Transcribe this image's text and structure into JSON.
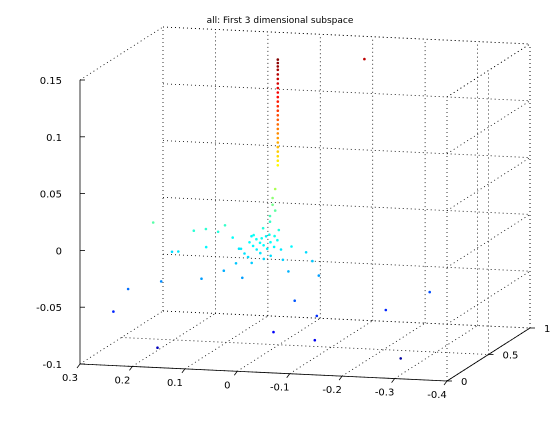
{
  "chart_data": {
    "type": "scatter",
    "title": "all: First 3 dimensional subspace",
    "xlabel": "",
    "ylabel": "",
    "zlabel": "",
    "xlim": [
      -0.4,
      0.3
    ],
    "ylim": [
      0,
      1
    ],
    "zlim": [
      -0.1,
      0.15
    ],
    "x_ticks": [
      "0.3",
      "0.2",
      "0.1",
      "0",
      "-0.1",
      "-0.2",
      "-0.3",
      "-0.4"
    ],
    "y_ticks": [
      "0",
      "0.5",
      "1"
    ],
    "z_ticks": [
      "-0.1",
      "-0.05",
      "0",
      "0.05",
      "0.1",
      "0.15"
    ],
    "grid": true,
    "colormap": "jet",
    "colors": {
      "background": "#ffffff",
      "axes": "#000000",
      "grid": "#000000"
    },
    "points": [
      [
        0.005,
        0.52,
        0.15
      ],
      [
        0.005,
        0.52,
        0.147
      ],
      [
        0.005,
        0.52,
        0.144
      ],
      [
        0.005,
        0.52,
        0.141
      ],
      [
        0.005,
        0.52,
        0.137
      ],
      [
        0.005,
        0.52,
        0.133
      ],
      [
        0.005,
        0.52,
        0.129
      ],
      [
        0.005,
        0.52,
        0.125
      ],
      [
        0.005,
        0.52,
        0.121
      ],
      [
        0.005,
        0.52,
        0.117
      ],
      [
        0.005,
        0.52,
        0.113
      ],
      [
        0.005,
        0.52,
        0.109
      ],
      [
        0.005,
        0.52,
        0.105
      ],
      [
        0.005,
        0.52,
        0.101
      ],
      [
        0.005,
        0.52,
        0.097
      ],
      [
        0.005,
        0.52,
        0.093
      ],
      [
        0.005,
        0.52,
        0.089
      ],
      [
        0.005,
        0.52,
        0.085
      ],
      [
        0.005,
        0.52,
        0.081
      ],
      [
        0.005,
        0.52,
        0.077
      ],
      [
        0.005,
        0.52,
        0.073
      ],
      [
        0.005,
        0.52,
        0.069
      ],
      [
        0.005,
        0.52,
        0.065
      ],
      [
        0.005,
        0.52,
        0.061
      ],
      [
        0.005,
        0.52,
        0.057
      ],
      [
        -0.1,
        0.9,
        0.135
      ],
      [
        0.01,
        0.52,
        0.036
      ],
      [
        0.015,
        0.52,
        0.028
      ],
      [
        0.015,
        0.52,
        0.022
      ],
      [
        0.01,
        0.52,
        0.017
      ],
      [
        0.02,
        0.52,
        0.012
      ],
      [
        0.02,
        0.52,
        0.007
      ],
      [
        0.03,
        0.5,
        0.002
      ],
      [
        0.0,
        0.5,
        0.001
      ],
      [
        0.01,
        0.45,
        -0.001
      ],
      [
        0.0,
        0.45,
        -0.002
      ],
      [
        0.04,
        0.45,
        -0.002
      ],
      [
        0.02,
        0.42,
        -0.003
      ],
      [
        0.03,
        0.42,
        -0.004
      ],
      [
        -0.01,
        0.42,
        -0.004
      ],
      [
        0.0,
        0.4,
        -0.005
      ],
      [
        0.02,
        0.4,
        -0.006
      ],
      [
        0.04,
        0.4,
        -0.006
      ],
      [
        0.01,
        0.38,
        -0.007
      ],
      [
        -0.01,
        0.38,
        -0.008
      ],
      [
        0.03,
        0.38,
        -0.008
      ],
      [
        0.0,
        0.36,
        -0.009
      ],
      [
        0.05,
        0.36,
        -0.01
      ],
      [
        0.02,
        0.36,
        -0.01
      ],
      [
        -0.02,
        0.4,
        -0.011
      ],
      [
        0.01,
        0.34,
        -0.012
      ],
      [
        0.04,
        0.34,
        -0.013
      ],
      [
        -0.01,
        0.34,
        -0.014
      ],
      [
        0.03,
        0.32,
        -0.015
      ],
      [
        0.0,
        0.32,
        -0.016
      ],
      [
        0.06,
        0.4,
        -0.012
      ],
      [
        -0.03,
        0.36,
        -0.018
      ],
      [
        0.02,
        0.3,
        -0.019
      ],
      [
        0.05,
        0.3,
        -0.02
      ],
      [
        -0.04,
        0.4,
        -0.008
      ],
      [
        0.08,
        0.45,
        -0.005
      ],
      [
        0.1,
        0.4,
        0.002
      ],
      [
        0.12,
        0.38,
        0.005
      ],
      [
        0.09,
        0.42,
        0.007
      ],
      [
        0.14,
        0.36,
        0.004
      ],
      [
        0.11,
        0.32,
        -0.008
      ],
      [
        -0.06,
        0.45,
        -0.015
      ],
      [
        -0.08,
        0.4,
        -0.02
      ],
      [
        -0.05,
        0.3,
        -0.025
      ],
      [
        0.07,
        0.28,
        -0.026
      ],
      [
        0.16,
        0.3,
        -0.012
      ],
      [
        0.18,
        0.35,
        -0.015
      ],
      [
        0.03,
        0.25,
        -0.03
      ],
      [
        -0.1,
        0.35,
        -0.03
      ],
      [
        0.2,
        0.25,
        0.015
      ],
      [
        0.06,
        0.55,
        -0.008
      ],
      [
        0.04,
        0.6,
        -0.01
      ],
      [
        0.24,
        0.2,
        -0.042
      ],
      [
        0.18,
        0.22,
        -0.035
      ],
      [
        0.1,
        0.2,
        -0.03
      ],
      [
        -0.07,
        0.25,
        -0.048
      ],
      [
        0.26,
        0.15,
        -0.06
      ],
      [
        -0.12,
        0.2,
        -0.058
      ],
      [
        -0.22,
        0.4,
        -0.06
      ],
      [
        -0.28,
        0.55,
        -0.05
      ],
      [
        -0.05,
        0.12,
        -0.07
      ],
      [
        -0.14,
        0.05,
        -0.072
      ],
      [
        0.16,
        0.05,
        -0.085
      ],
      [
        -0.28,
        0.2,
        -0.092
      ]
    ]
  }
}
